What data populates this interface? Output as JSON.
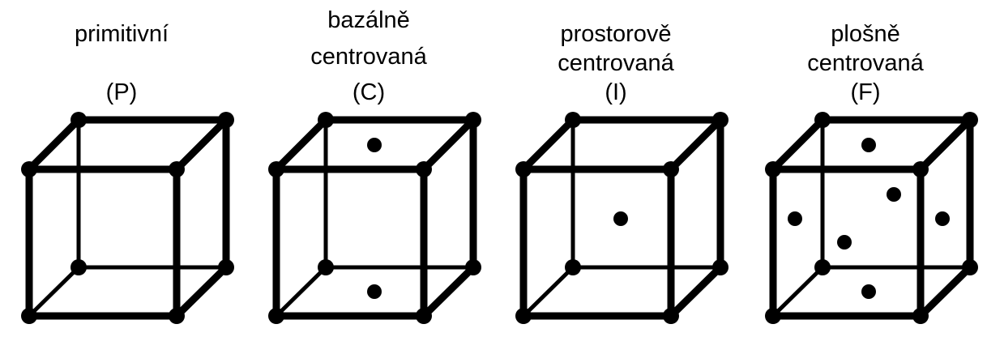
{
  "lattices": [
    {
      "name": "primitive",
      "label_line1": "primitivní",
      "label_line2": "",
      "symbol": "(P)"
    },
    {
      "name": "base-centered",
      "label_line1": "bazálně",
      "label_line2": "centrovaná",
      "symbol": "(C)"
    },
    {
      "name": "body-centered",
      "label_line1": "prostorově",
      "label_line2": "centrovaná",
      "symbol": "(I)"
    },
    {
      "name": "face-centered",
      "label_line1": "plošně",
      "label_line2": "centrovaná",
      "symbol": "(F)"
    }
  ]
}
